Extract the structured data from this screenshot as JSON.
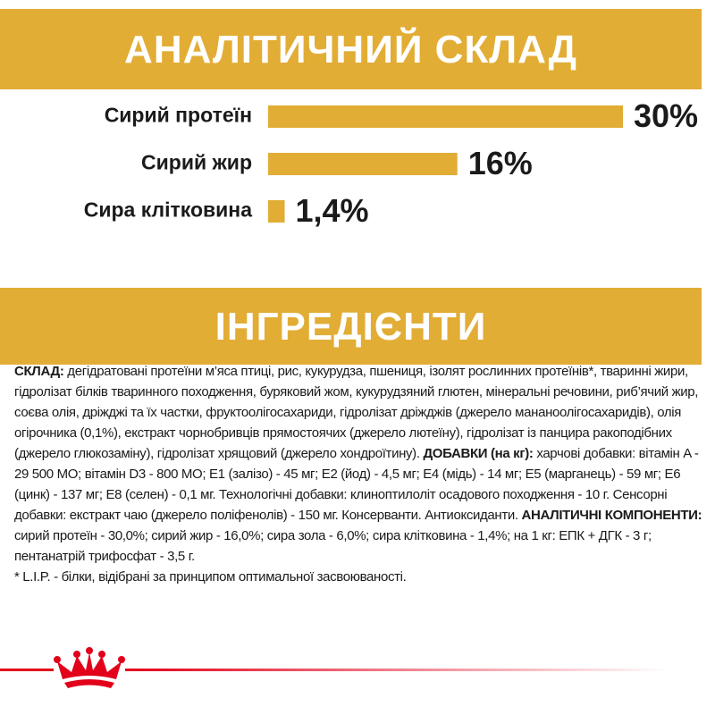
{
  "header": {
    "title": "АНАЛІТИЧНИЙ СКЛАД"
  },
  "chart_data": {
    "type": "bar",
    "categories": [
      "Сирий протеїн",
      "Сирий жир",
      "Сира клітковина"
    ],
    "values": [
      30,
      16,
      1.4
    ],
    "value_labels": [
      "30%",
      "16%",
      "1,4%"
    ],
    "color": "#e2ad35"
  },
  "ingredients": {
    "title": "ІНГРЕДІЄНТИ",
    "paragraphs": [
      [
        {
          "text": "СКЛАД:",
          "bold": true
        },
        {
          "text": " дегідратовані протеїни м’яса птиці, рис, кукурудза, пшениця, ізолят рослинних протеїнів*, тваринні жири, гідролізат білків тваринного походження, буряковий жом, кукурудзяний глютен, мінеральні речовини, риб’ячий жир, соєва олія, дріжджі та їх частки, фруктоолігосахариди, гідролізат дріжджів (джерело мананоолігосахаридів), олія огірочника (0,1%), екстракт чорнобривців прямостоячих (джерело лютеїну), гідролізат із панцира ракоподібних (джерело глюкозаміну), гідролізат хрящовий (джерело хондроїтину). ",
          "bold": false
        },
        {
          "text": "ДОБАВКИ (на кг):",
          "bold": true
        },
        {
          "text": " харчові добавки: вітамін A - 29 500 МО; вітамін D3 - 800 МО; E1 (залізо) - 45 мг; E2 (йод) - 4,5 мг; E4 (мідь) - 14 мг; E5 (марганець) - 59 мг; E6 (цинк) - 137 мг; E8 (селен) - 0,1 мг. Технологічні добавки: клиноптилоліт осадового походження - 10 г. Сенсорні добавки: екстракт чаю (джерело поліфенолів) - 150 мг. Консерванти. Антиоксиданти. ",
          "bold": false
        },
        {
          "text": "АНАЛІТИЧНІ КОМПОНЕНТИ:",
          "bold": true
        },
        {
          "text": " сирий протеїн - 30,0%; сирий жир - 16,0%; сира зола - 6,0%; сира клітковина - 1,4%; на 1 кг: ЕПК + ДГК - 3 г; пентанатрій трифосфат - 3,5 г.",
          "bold": false
        }
      ],
      [
        {
          "text": "* L.I.P. - білки, відібрані за принципом оптимальної засвоюваності.",
          "bold": false
        }
      ]
    ]
  }
}
